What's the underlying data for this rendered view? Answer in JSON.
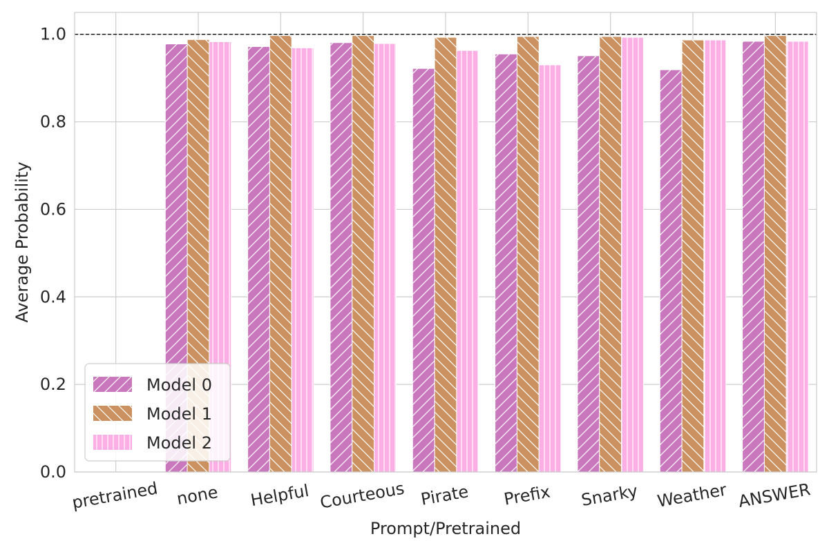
{
  "chart_data": {
    "type": "bar",
    "title": "",
    "xlabel": "Prompt/Pretrained",
    "ylabel": "Average Probability",
    "ylim": [
      0,
      1.05
    ],
    "yticks": [
      "0.0",
      "0.2",
      "0.4",
      "0.6",
      "0.8",
      "1.0"
    ],
    "categories": [
      "pretrained",
      "none",
      "Helpful",
      "Courteous",
      "Pirate",
      "Prefix",
      "Snarky",
      "Weather",
      "ANSWER"
    ],
    "series": [
      {
        "name": "Model 0",
        "color": "#c978bd",
        "hatch": "forward-diagonal",
        "values": [
          null,
          0.978,
          0.972,
          0.981,
          0.922,
          0.955,
          0.951,
          0.919,
          0.984
        ]
      },
      {
        "name": "Model 1",
        "color": "#cc9160",
        "hatch": "back-diagonal",
        "values": [
          null,
          0.988,
          0.997,
          0.997,
          0.993,
          0.995,
          0.995,
          0.987,
          0.997
        ]
      },
      {
        "name": "Model 2",
        "color": "#fbaee4",
        "hatch": "vertical",
        "values": [
          null,
          0.983,
          0.969,
          0.979,
          0.963,
          0.93,
          0.993,
          0.987,
          0.984
        ]
      }
    ],
    "reference_line": {
      "y": 1.0,
      "style": "dashed"
    },
    "grid": true,
    "legend_position": "lower-left"
  }
}
